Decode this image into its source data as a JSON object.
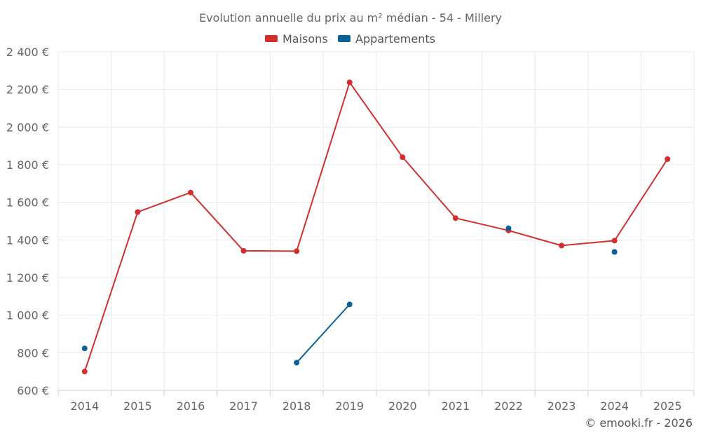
{
  "chart_data": {
    "type": "line",
    "title": "Evolution annuelle du prix au m² médian - 54 - Millery",
    "categories": [
      "2014",
      "2015",
      "2016",
      "2017",
      "2018",
      "2019",
      "2020",
      "2021",
      "2022",
      "2023",
      "2024",
      "2025"
    ],
    "series": [
      {
        "name": "Maisons",
        "color": "#d32f2f",
        "values": [
          700,
          1548,
          1652,
          1342,
          1340,
          2238,
          1840,
          1516,
          1450,
          1370,
          1396,
          1830
        ]
      },
      {
        "name": "Appartements",
        "color": "#0b6196",
        "values": [
          823,
          null,
          null,
          null,
          747,
          1057,
          null,
          null,
          1462,
          null,
          1336,
          null
        ]
      }
    ],
    "ylim": [
      600,
      2400
    ],
    "yticks": [
      600,
      800,
      1000,
      1200,
      1400,
      1600,
      1800,
      2000,
      2200,
      2400
    ],
    "ytick_labels": [
      "600 €",
      "800 €",
      "1 000 €",
      "1 200 €",
      "1 400 €",
      "1 600 €",
      "1 800 €",
      "2 000 €",
      "2 200 €",
      "2 400 €"
    ],
    "xlabel": "",
    "ylabel": "",
    "grid": true,
    "legend": "top-center"
  },
  "footer": "© emooki.fr - 2026"
}
